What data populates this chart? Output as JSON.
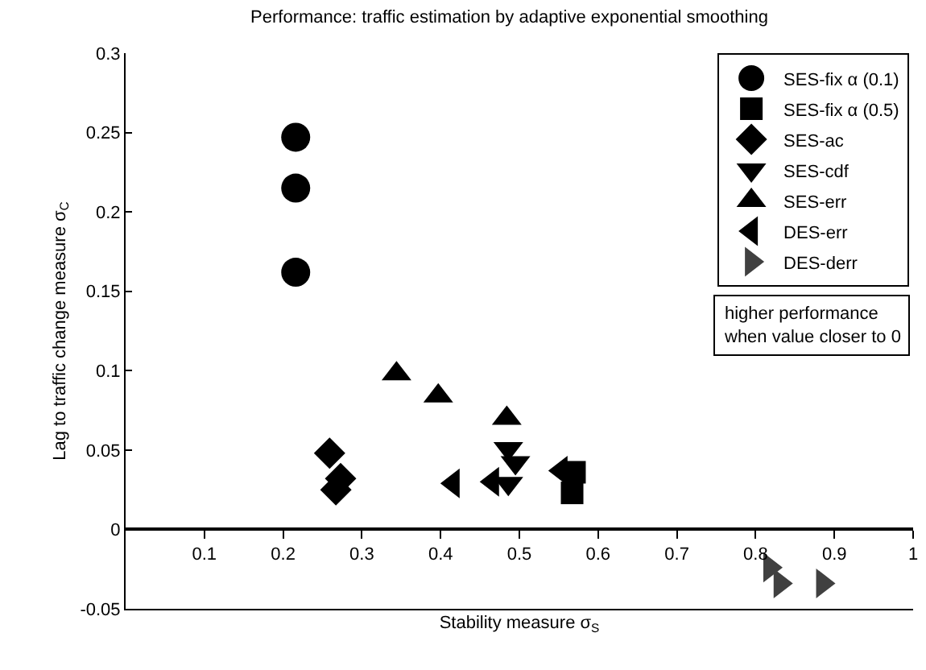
{
  "chart_data": {
    "type": "scatter",
    "title": "Performance: traffic estimation by adaptive exponential smoothing",
    "xlabel": "Stability measure σ$_{S}$",
    "ylabel": "Lag to traffic change measure σ$_{C}$",
    "annotations": [
      "higher performance\nwhen value closer to 0"
    ],
    "xlim": [
      0,
      1
    ],
    "xticks": [
      0.1,
      0.2,
      0.3,
      0.4,
      0.5,
      0.6,
      0.7,
      0.8,
      0.9,
      1
    ],
    "ylim": [
      -0.05,
      0.3
    ],
    "yticks": [
      -0.05,
      0,
      0.05,
      0.1,
      0.15,
      0.2,
      0.25,
      0.3
    ],
    "grid": false,
    "legend": "top right",
    "series": [
      {
        "name": "SES-fix α (0.1)",
        "color": "#000000",
        "marker": "circle",
        "x": [
          0.216,
          0.216,
          0.216
        ],
        "values": [
          0.247,
          0.215,
          0.162
        ]
      },
      {
        "name": "SES-fix α (0.5)",
        "color": "#000000",
        "marker": "square",
        "x": [
          0.57,
          0.569,
          0.567
        ],
        "values": [
          0.036,
          null,
          0.023
        ]
      },
      {
        "name": "SES-ac",
        "color": "#000000",
        "marker": "diamond",
        "x": [
          0.259,
          0.273,
          0.267
        ],
        "values": [
          0.048,
          0.032,
          0.025
        ]
      },
      {
        "name": "SES-cdf",
        "color": "#000000",
        "marker": "triangle-down",
        "x": [
          0.486,
          0.495,
          0.486
        ],
        "values": [
          0.051,
          0.042,
          0.029
        ]
      },
      {
        "name": "SES-err",
        "color": "#000000",
        "marker": "triangle",
        "x": [
          0.344,
          0.397,
          0.484
        ],
        "values": [
          0.098,
          0.084,
          0.07
        ]
      },
      {
        "name": "DES-err",
        "color": "#000000",
        "marker": "triangle-left",
        "x": [
          0.416,
          0.466,
          0.553
        ],
        "values": [
          0.029,
          0.03,
          0.037
        ]
      },
      {
        "name": "DES-derr",
        "color": "#404040",
        "marker": "triangle-right",
        "x": [
          0.818,
          0.831,
          0.885
        ],
        "values": [
          -0.024,
          -0.034,
          -0.034
        ]
      }
    ]
  }
}
